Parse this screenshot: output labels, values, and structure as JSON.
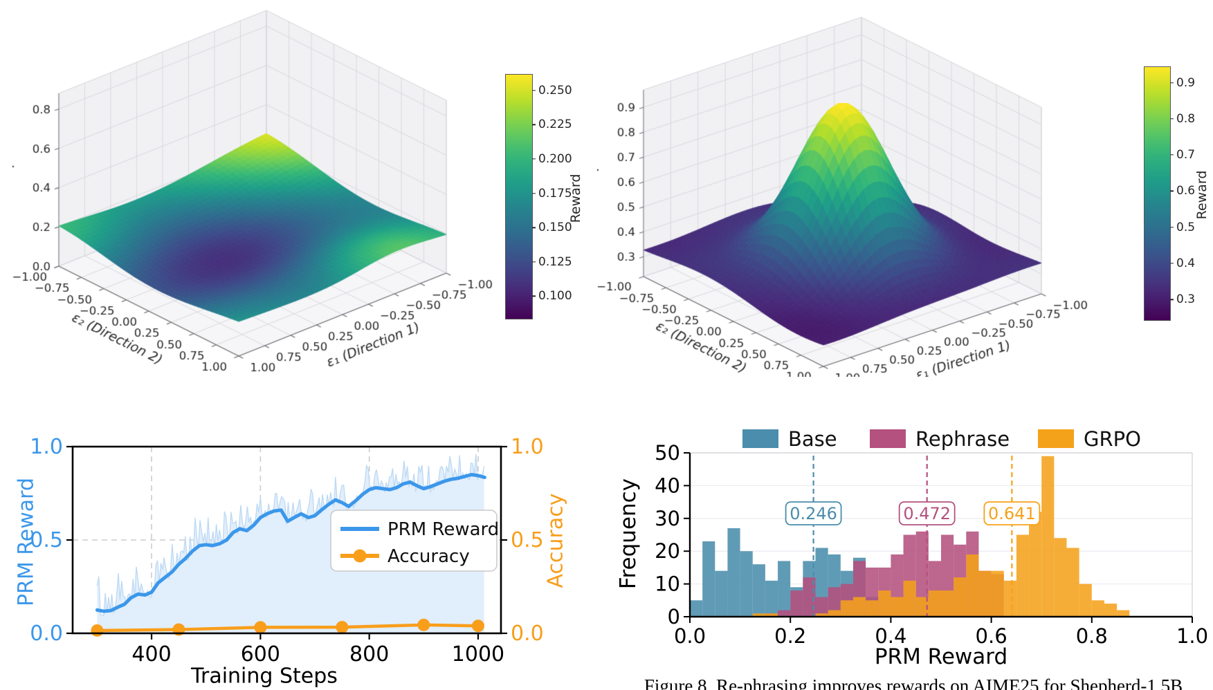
{
  "caption": "Figure 8. Re-phrasing improves rewards on AIME25 for Shepherd-1.5B",
  "colors": {
    "reward_blue": "#3b97ea",
    "reward_fill": "#e1eefb",
    "reward_raw": "#bcd9f4",
    "accuracy_orange": "#f89e1b",
    "base_teal": "#4a8dac",
    "rephrase_magenta": "#b4517e",
    "grpo_orange": "#f5a21b",
    "grid_gray": "#cccccc",
    "viridis_stops": [
      "#440154",
      "#482878",
      "#3e4a89",
      "#31688e",
      "#26828e",
      "#1f9e89",
      "#35b779",
      "#6ece58",
      "#b5de2b",
      "#fde725"
    ]
  },
  "chart_data": [
    {
      "id": "surface-left",
      "type": "3d_surface",
      "xlabel": "ε₂ (Direction 2)",
      "ylabel": "ε₁ (Direction 1)",
      "zlabel": ".",
      "e_ticks": [
        -1.0,
        -0.75,
        -0.5,
        -0.25,
        0.0,
        0.25,
        0.5,
        0.75,
        1.0
      ],
      "z_ticks": [
        0.0,
        0.2,
        0.4,
        0.6,
        0.8
      ],
      "zlim": [
        0.0,
        0.88
      ],
      "description": "Noisy low plateau around 0.15-0.25 with a shallow central-front depression near 0.09 and an elevated yellow ridge (~0.26) along the back edge.",
      "surface": {
        "base": 0.185,
        "gauss": [
          [
            0.07,
            -1.15,
            0.7,
            -1.1,
            0.8
          ],
          [
            -0.09,
            0.05,
            0.55,
            0.15,
            0.8
          ],
          [
            0.045,
            0.95,
            0.45,
            -0.5,
            0.35
          ],
          [
            0.02,
            -1.0,
            0.4,
            1.0,
            0.4
          ]
        ],
        "ripple": [
          0.012,
          2.7,
          0.8,
          2.1
        ]
      },
      "colorbar": {
        "label": "Reward",
        "vmin": 0.084,
        "vmax": 0.262,
        "tick_values": [
          0.25,
          0.225,
          0.2,
          0.175,
          0.15,
          0.125,
          0.1
        ],
        "tick_decimals": 3
      }
    },
    {
      "id": "surface-right",
      "type": "3d_surface",
      "xlabel": "ε₂ (Direction 2)",
      "ylabel": "ε₁ (Direction 1)",
      "zlabel": ".",
      "e_ticks": [
        -1.0,
        -0.75,
        -0.5,
        -0.25,
        0.0,
        0.25,
        0.5,
        0.75,
        1.0
      ],
      "z_ticks": [
        0.3,
        0.4,
        0.5,
        0.6,
        0.7,
        0.8,
        0.9
      ],
      "zlim": [
        0.22,
        0.97
      ],
      "description": "Sharp central Gaussian peak reaching ~0.95 at (0,0) rising from a noisy purple plateau around 0.3.",
      "surface": {
        "base": 0.335,
        "gauss": [
          [
            0.615,
            0.0,
            0.33,
            0.0,
            0.33
          ],
          [
            -0.07,
            -0.95,
            0.35,
            -0.95,
            0.35
          ],
          [
            -0.04,
            0.9,
            0.4,
            0.9,
            0.4
          ]
        ],
        "ripple": [
          0.012,
          4.0,
          0.0,
          3.5
        ]
      },
      "colorbar": {
        "label": "Reward",
        "vmin": 0.245,
        "vmax": 0.945,
        "tick_values": [
          0.9,
          0.8,
          0.7,
          0.6,
          0.5,
          0.4,
          0.3
        ],
        "tick_decimals": 1
      }
    },
    {
      "id": "training-curve",
      "type": "line",
      "xlabel": "Training Steps",
      "ylabel_left": "PRM Reward",
      "ylabel_right": "Accuracy",
      "xlim": [
        255,
        1042
      ],
      "xticks": [
        400,
        600,
        800,
        1000
      ],
      "ylim": [
        0.0,
        1.0
      ],
      "ytick_values": [
        0.0,
        0.5,
        1.0
      ],
      "legend": [
        "PRM Reward",
        "Accuracy"
      ],
      "series": [
        {
          "name": "PRM Reward",
          "points": [
            [
              300,
              0.125
            ],
            [
              312,
              0.118
            ],
            [
              325,
              0.122
            ],
            [
              338,
              0.14
            ],
            [
              350,
              0.155
            ],
            [
              362,
              0.19
            ],
            [
              375,
              0.21
            ],
            [
              388,
              0.205
            ],
            [
              400,
              0.22
            ],
            [
              412,
              0.27
            ],
            [
              425,
              0.3
            ],
            [
              438,
              0.33
            ],
            [
              450,
              0.37
            ],
            [
              462,
              0.4
            ],
            [
              475,
              0.44
            ],
            [
              488,
              0.47
            ],
            [
              500,
              0.475
            ],
            [
              512,
              0.47
            ],
            [
              525,
              0.48
            ],
            [
              538,
              0.5
            ],
            [
              550,
              0.54
            ],
            [
              562,
              0.56
            ],
            [
              575,
              0.55
            ],
            [
              588,
              0.58
            ],
            [
              600,
              0.62
            ],
            [
              612,
              0.64
            ],
            [
              625,
              0.655
            ],
            [
              638,
              0.66
            ],
            [
              650,
              0.6
            ],
            [
              662,
              0.62
            ],
            [
              675,
              0.64
            ],
            [
              688,
              0.62
            ],
            [
              700,
              0.63
            ],
            [
              712,
              0.66
            ],
            [
              725,
              0.69
            ],
            [
              738,
              0.715
            ],
            [
              750,
              0.7
            ],
            [
              762,
              0.68
            ],
            [
              775,
              0.71
            ],
            [
              788,
              0.745
            ],
            [
              800,
              0.77
            ],
            [
              812,
              0.78
            ],
            [
              825,
              0.775
            ],
            [
              838,
              0.77
            ],
            [
              850,
              0.78
            ],
            [
              862,
              0.8
            ],
            [
              875,
              0.81
            ],
            [
              888,
              0.79
            ],
            [
              900,
              0.775
            ],
            [
              912,
              0.785
            ],
            [
              925,
              0.8
            ],
            [
              938,
              0.815
            ],
            [
              950,
              0.825
            ],
            [
              962,
              0.83
            ],
            [
              975,
              0.84
            ],
            [
              988,
              0.85
            ],
            [
              1000,
              0.845
            ],
            [
              1012,
              0.835
            ]
          ]
        },
        {
          "name": "Accuracy",
          "points": [
            [
              300,
              0.015
            ],
            [
              450,
              0.02
            ],
            [
              600,
              0.032
            ],
            [
              750,
              0.033
            ],
            [
              900,
              0.045
            ],
            [
              1000,
              0.04
            ]
          ]
        }
      ],
      "noise": {
        "seed": 24691,
        "step": 3
      }
    },
    {
      "id": "reward-histogram",
      "type": "histogram",
      "xlabel": "PRM Reward",
      "ylabel": "Frequency",
      "xlim": [
        0.0,
        1.0
      ],
      "xticks": [
        0.0,
        0.2,
        0.4,
        0.6,
        0.8,
        1.0
      ],
      "ylim": [
        0,
        50
      ],
      "yticks": [
        0,
        10,
        20,
        30,
        40,
        50
      ],
      "bin_width": 0.025,
      "series": [
        {
          "name": "Base",
          "color": "#4a8dac",
          "start": 0.0,
          "counts": [
            5,
            23,
            14,
            27,
            20,
            16,
            11,
            17,
            9,
            17,
            21,
            19,
            14,
            18,
            6
          ]
        },
        {
          "name": "Rephrase",
          "color": "#b4517e",
          "start": 0.15,
          "counts": [
            1,
            2,
            8,
            12,
            6,
            9,
            10,
            17,
            15,
            15,
            19,
            25,
            26,
            17,
            25,
            22,
            26,
            14,
            13
          ]
        },
        {
          "name": "GRPO",
          "color": "#f5a21b",
          "start": 0.125,
          "counts": [
            1,
            1,
            0,
            0,
            0,
            1,
            2,
            5,
            6,
            5,
            8,
            6,
            11,
            6,
            8,
            8,
            12,
            19,
            14,
            14,
            11,
            25,
            32,
            49,
            24,
            21,
            10,
            5,
            4,
            2
          ]
        }
      ],
      "means": [
        {
          "series": "Base",
          "value": 0.246,
          "label": "0.246",
          "color": "#4a8dac"
        },
        {
          "series": "Rephrase",
          "value": 0.472,
          "label": "0.472",
          "color": "#b4517e"
        },
        {
          "series": "GRPO",
          "value": 0.641,
          "label": "0.641",
          "color": "#f5a21b"
        }
      ]
    }
  ]
}
